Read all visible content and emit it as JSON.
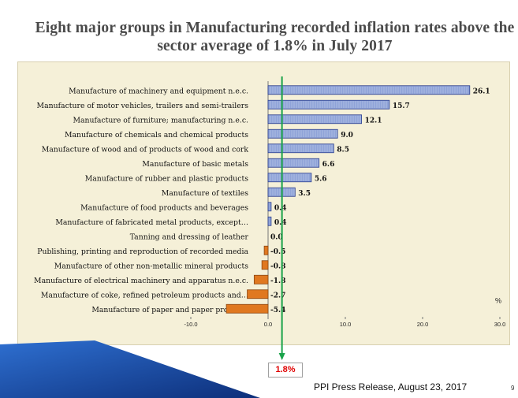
{
  "slide": {
    "title_line1": "Eight major groups in Manufacturing recorded inflation rates above the",
    "title_line2": "sector average of 1.8% in July 2017",
    "callout": "1.8%",
    "source": "PPI Press Release, August 23, 2017",
    "page_number": "9"
  },
  "colors": {
    "positive_bar": "#8fa3d8",
    "positive_bar_border": "#2b3f8f",
    "negative_bar": "#e07820",
    "negative_bar_border": "#8a4510",
    "reference_line": "#1aa34a",
    "panel_background": "#f5f0d8",
    "callout_text": "#e00000"
  },
  "chart_data": {
    "type": "bar",
    "orientation": "horizontal",
    "categories": [
      "Manufacture of machinery and equipment n.e.c.",
      "Manufacture of motor vehicles, trailers and semi-trailers",
      "Manufacture of furniture; manufacturing n.e.c.",
      "Manufacture of chemicals and chemical products",
      "Manufacture of wood and of products of wood and cork",
      "Manufacture of basic metals",
      "Manufacture of rubber and plastic products",
      "Manufacture of textiles",
      "Manufacture of food products and beverages",
      "Manufacture of fabricated metal products, except…",
      "Tanning and dressing of leather",
      "Publishing, printing and reproduction of recorded media",
      "Manufacture of other non-metallic mineral products",
      "Manufacture of electrical machinery and apparatus n.e.c.",
      "Manufacture of coke, refined petroleum products and…",
      "Manufacture of paper and paper products"
    ],
    "values": [
      26.1,
      15.7,
      12.1,
      9.0,
      8.5,
      6.6,
      5.6,
      3.5,
      0.4,
      0.4,
      0.0,
      -0.5,
      -0.8,
      -1.8,
      -2.7,
      -5.4
    ],
    "value_labels": [
      "26.1",
      "15.7",
      "12.1",
      "9.0",
      "8.5",
      "6.6",
      "5.6",
      "3.5",
      "0.4",
      "0.4",
      "0.0",
      "-0.5",
      "-0.8",
      "-1.8",
      "-2.7",
      "-5.4"
    ],
    "xlim": [
      -10,
      30
    ],
    "xticks": [
      "-10.0",
      "0.0",
      "10.0",
      "20.0",
      "30.0"
    ],
    "xlabel": "%",
    "reference_value": 1.8,
    "grid": false,
    "legend": false
  }
}
